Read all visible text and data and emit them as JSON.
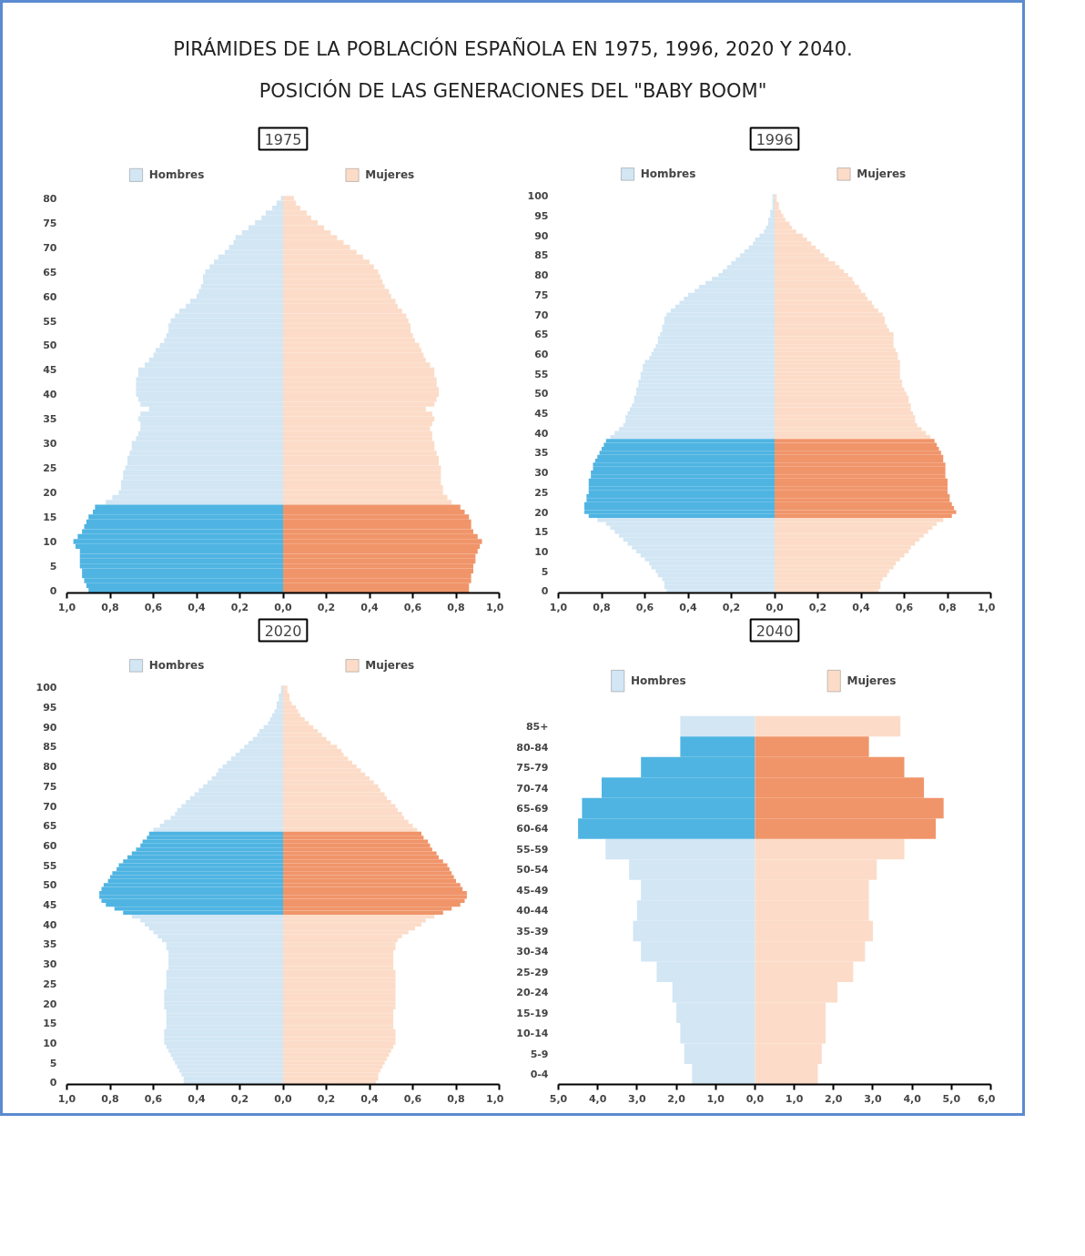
{
  "chart_data": [
    {
      "type": "other",
      "title": "PIRÁMIDES DE LA POBLACIÓN ESPAÑOLA EN 1975, 1996, 2020 Y 2040.",
      "subtitle": "POSICIÓN DE LAS GENERACIONES DEL \"BABY BOOM\""
    },
    {
      "type": "bar",
      "orientation": "horizontal",
      "stacked": true,
      "legend": "top",
      "title": "1975",
      "categories": [
        "80",
        null,
        null,
        null,
        null,
        "75",
        null,
        null,
        null,
        null,
        "70",
        null,
        null,
        null,
        null,
        "65",
        null,
        null,
        null,
        null,
        "60",
        null,
        null,
        null,
        null,
        "55",
        null,
        null,
        null,
        null,
        "50",
        null,
        null,
        null,
        null,
        "45",
        null,
        null,
        null,
        null,
        "40",
        null,
        null,
        null,
        null,
        "35",
        null,
        null,
        null,
        null,
        "30",
        null,
        null,
        null,
        null,
        "25",
        null,
        null,
        null,
        null,
        "20",
        null,
        null,
        null,
        null,
        "15",
        null,
        null,
        null,
        null,
        "10",
        null,
        null,
        null,
        null,
        "5",
        null,
        null,
        null,
        null,
        "0"
      ],
      "xlim": [
        -1.0,
        1.0
      ],
      "xticks": [
        {
          "value": -1.0,
          "label": "1,0"
        },
        {
          "value": -0.8,
          "label": "0,8"
        },
        {
          "value": -0.6,
          "label": "0,6"
        },
        {
          "value": -0.4,
          "label": "0,4"
        },
        {
          "value": -0.2,
          "label": "0,2"
        },
        {
          "value": 0,
          "label": "0,0"
        },
        {
          "value": 0.2,
          "label": "0,2"
        },
        {
          "value": 0.4,
          "label": "0,4"
        },
        {
          "value": 0.6,
          "label": "0,6"
        },
        {
          "value": 0.8,
          "label": "0,8"
        },
        {
          "value": 1.0,
          "label": "1,0"
        }
      ],
      "series": [
        {
          "name": "Hombres",
          "color": "#d2e6f4",
          "values": [
            -0.01,
            -0.03,
            -0.05,
            -0.08,
            -0.1,
            -0.13,
            -0.16,
            -0.19,
            -0.22,
            -0.23,
            -0.25,
            -0.27,
            -0.3,
            -0.32,
            -0.34,
            -0.36,
            -0.37,
            -0.37,
            -0.38,
            -0.39,
            -0.4,
            -0.43,
            -0.45,
            -0.48,
            -0.5,
            -0.52,
            -0.53,
            -0.53,
            -0.54,
            -0.55,
            -0.57,
            -0.59,
            -0.6,
            -0.62,
            -0.64,
            -0.67,
            -0.67,
            -0.68,
            -0.68,
            -0.68,
            -0.68,
            -0.67,
            -0.66,
            -0.62,
            -0.66,
            -0.67,
            -0.66,
            -0.66,
            -0.67,
            -0.68,
            -0.7,
            -0.7,
            -0.71,
            -0.72,
            -0.72,
            -0.73,
            -0.74,
            -0.74,
            -0.75,
            -0.75,
            -0.76,
            -0.79,
            -0.82,
            null,
            null,
            null,
            null,
            null,
            null,
            null,
            null,
            null,
            null,
            null,
            null,
            null,
            null,
            null,
            null,
            null,
            null
          ]
        },
        {
          "color": "#4fb4e2",
          "values": [
            null,
            null,
            null,
            null,
            null,
            null,
            null,
            null,
            null,
            null,
            null,
            null,
            null,
            null,
            null,
            null,
            null,
            null,
            null,
            null,
            null,
            null,
            null,
            null,
            null,
            null,
            null,
            null,
            null,
            null,
            null,
            null,
            null,
            null,
            null,
            null,
            null,
            null,
            null,
            null,
            null,
            null,
            null,
            null,
            null,
            null,
            null,
            null,
            null,
            null,
            null,
            null,
            null,
            null,
            null,
            null,
            null,
            null,
            null,
            null,
            null,
            null,
            null,
            -0.87,
            -0.88,
            -0.9,
            -0.91,
            -0.92,
            -0.93,
            -0.95,
            -0.97,
            -0.96,
            -0.94,
            -0.94,
            -0.94,
            -0.94,
            -0.93,
            -0.93,
            -0.92,
            -0.91,
            -0.9
          ]
        },
        {
          "name": "Mujeres",
          "color": "#fcdcc8",
          "values": [
            0.05,
            0.06,
            0.08,
            0.11,
            0.13,
            0.16,
            0.19,
            0.22,
            0.25,
            0.28,
            0.31,
            0.34,
            0.37,
            0.4,
            0.42,
            0.44,
            0.45,
            0.46,
            0.47,
            0.49,
            0.5,
            0.52,
            0.53,
            0.55,
            0.57,
            0.58,
            0.59,
            0.59,
            0.6,
            0.61,
            0.63,
            0.64,
            0.65,
            0.66,
            0.68,
            0.7,
            0.7,
            0.71,
            0.71,
            0.72,
            0.72,
            0.71,
            0.7,
            0.66,
            0.69,
            0.7,
            0.69,
            0.68,
            0.69,
            0.69,
            0.7,
            0.7,
            0.71,
            0.72,
            0.72,
            0.73,
            0.73,
            0.73,
            0.73,
            0.74,
            0.74,
            0.76,
            0.78,
            null,
            null,
            null,
            null,
            null,
            null,
            null,
            null,
            null,
            null,
            null,
            null,
            null,
            null,
            null,
            null,
            null,
            null
          ]
        },
        {
          "color": "#f0956a",
          "values": [
            null,
            null,
            null,
            null,
            null,
            null,
            null,
            null,
            null,
            null,
            null,
            null,
            null,
            null,
            null,
            null,
            null,
            null,
            null,
            null,
            null,
            null,
            null,
            null,
            null,
            null,
            null,
            null,
            null,
            null,
            null,
            null,
            null,
            null,
            null,
            null,
            null,
            null,
            null,
            null,
            null,
            null,
            null,
            null,
            null,
            null,
            null,
            null,
            null,
            null,
            null,
            null,
            null,
            null,
            null,
            null,
            null,
            null,
            null,
            null,
            null,
            null,
            null,
            0.82,
            0.84,
            0.86,
            0.87,
            0.87,
            0.88,
            0.9,
            0.92,
            0.91,
            0.9,
            0.89,
            0.89,
            0.88,
            0.88,
            0.87,
            0.87,
            0.86,
            0.86
          ]
        }
      ]
    },
    {
      "type": "bar",
      "orientation": "horizontal",
      "stacked": true,
      "legend": "top",
      "title": "1996",
      "categories": [
        "100",
        null,
        null,
        null,
        null,
        "95",
        null,
        null,
        null,
        null,
        "90",
        null,
        null,
        null,
        null,
        "85",
        null,
        null,
        null,
        null,
        "80",
        null,
        null,
        null,
        null,
        "75",
        null,
        null,
        null,
        null,
        "70",
        null,
        null,
        null,
        null,
        "65",
        null,
        null,
        null,
        null,
        "60",
        null,
        null,
        null,
        null,
        "55",
        null,
        null,
        null,
        null,
        "50",
        null,
        null,
        null,
        null,
        "45",
        null,
        null,
        null,
        null,
        "40",
        null,
        null,
        null,
        null,
        "35",
        null,
        null,
        null,
        null,
        "30",
        null,
        null,
        null,
        null,
        "25",
        null,
        null,
        null,
        null,
        "20",
        null,
        null,
        null,
        null,
        "15",
        null,
        null,
        null,
        null,
        "10",
        null,
        null,
        null,
        null,
        "5",
        null,
        null,
        null,
        null,
        "0"
      ],
      "xlim": [
        -1.0,
        1.0
      ],
      "xticks": [
        {
          "value": -1.0,
          "label": "1,0"
        },
        {
          "value": -0.8,
          "label": "0,8"
        },
        {
          "value": -0.6,
          "label": "0,6"
        },
        {
          "value": -0.4,
          "label": "0,4"
        },
        {
          "value": -0.2,
          "label": "0,2"
        },
        {
          "value": 0,
          "label": "0,0"
        },
        {
          "value": 0.2,
          "label": "0,2"
        },
        {
          "value": 0.4,
          "label": "0,4"
        },
        {
          "value": 0.6,
          "label": "0,6"
        },
        {
          "value": 0.8,
          "label": "0,8"
        },
        {
          "value": 1.0,
          "label": "1,0"
        }
      ],
      "series": [
        {
          "name": "Hombres",
          "color": "#d2e6f4",
          "values": [
            -0.01,
            -0.01,
            -0.01,
            -0.01,
            -0.02,
            -0.02,
            -0.03,
            -0.03,
            -0.04,
            -0.05,
            -0.07,
            -0.09,
            -0.1,
            -0.12,
            -0.14,
            -0.16,
            -0.18,
            -0.2,
            -0.22,
            -0.24,
            -0.26,
            -0.29,
            -0.32,
            -0.35,
            -0.37,
            -0.4,
            -0.42,
            -0.44,
            -0.46,
            -0.48,
            -0.5,
            -0.51,
            -0.51,
            -0.52,
            -0.52,
            -0.53,
            -0.54,
            -0.54,
            -0.55,
            -0.56,
            -0.57,
            -0.58,
            -0.6,
            -0.61,
            -0.61,
            -0.62,
            -0.62,
            -0.63,
            -0.63,
            -0.64,
            -0.64,
            -0.65,
            -0.65,
            -0.66,
            -0.67,
            -0.68,
            -0.69,
            -0.69,
            -0.7,
            -0.72,
            -0.74,
            -0.76,
            null,
            null,
            null,
            null,
            null,
            null,
            null,
            null,
            null,
            null,
            null,
            null,
            null,
            null,
            null,
            null,
            null,
            null,
            null,
            null,
            -0.82,
            -0.78,
            -0.76,
            -0.74,
            -0.72,
            -0.7,
            -0.68,
            -0.66,
            -0.64,
            -0.62,
            -0.6,
            -0.58,
            -0.57,
            -0.55,
            -0.54,
            -0.52,
            -0.51,
            -0.51,
            -0.5
          ]
        },
        {
          "color": "#4fb4e2",
          "values": [
            null,
            null,
            null,
            null,
            null,
            null,
            null,
            null,
            null,
            null,
            null,
            null,
            null,
            null,
            null,
            null,
            null,
            null,
            null,
            null,
            null,
            null,
            null,
            null,
            null,
            null,
            null,
            null,
            null,
            null,
            null,
            null,
            null,
            null,
            null,
            null,
            null,
            null,
            null,
            null,
            null,
            null,
            null,
            null,
            null,
            null,
            null,
            null,
            null,
            null,
            null,
            null,
            null,
            null,
            null,
            null,
            null,
            null,
            null,
            null,
            null,
            null,
            -0.78,
            -0.79,
            -0.8,
            -0.81,
            -0.82,
            -0.83,
            -0.84,
            -0.84,
            -0.85,
            -0.85,
            -0.86,
            -0.86,
            -0.86,
            -0.86,
            -0.87,
            -0.87,
            -0.88,
            -0.88,
            -0.88,
            -0.86,
            null,
            null,
            null,
            null,
            null,
            null,
            null,
            null,
            null,
            null,
            null,
            null,
            null,
            null,
            null,
            null,
            null,
            null,
            null
          ]
        },
        {
          "name": "Mujeres",
          "color": "#fcdcc8",
          "values": [
            0.01,
            0.01,
            0.02,
            0.02,
            0.03,
            0.04,
            0.05,
            0.07,
            0.08,
            0.1,
            0.13,
            0.15,
            0.17,
            0.19,
            0.21,
            0.23,
            0.25,
            0.28,
            0.3,
            0.32,
            0.34,
            0.36,
            0.37,
            0.39,
            0.4,
            0.42,
            0.43,
            0.45,
            0.46,
            0.48,
            0.5,
            0.51,
            0.51,
            0.52,
            0.53,
            0.55,
            0.55,
            0.55,
            0.55,
            0.56,
            0.57,
            0.57,
            0.58,
            0.58,
            0.58,
            0.58,
            0.58,
            0.59,
            0.59,
            0.6,
            0.61,
            0.62,
            0.62,
            0.63,
            0.63,
            0.64,
            0.65,
            0.65,
            0.66,
            0.68,
            0.7,
            0.72,
            null,
            null,
            null,
            null,
            null,
            null,
            null,
            null,
            null,
            null,
            null,
            null,
            null,
            null,
            null,
            null,
            null,
            null,
            null,
            null,
            0.78,
            0.75,
            0.73,
            0.71,
            0.69,
            0.67,
            0.65,
            0.63,
            0.62,
            0.6,
            0.58,
            0.56,
            0.55,
            0.53,
            0.52,
            0.5,
            0.49,
            0.49,
            0.48
          ]
        },
        {
          "color": "#f0956a",
          "values": [
            null,
            null,
            null,
            null,
            null,
            null,
            null,
            null,
            null,
            null,
            null,
            null,
            null,
            null,
            null,
            null,
            null,
            null,
            null,
            null,
            null,
            null,
            null,
            null,
            null,
            null,
            null,
            null,
            null,
            null,
            null,
            null,
            null,
            null,
            null,
            null,
            null,
            null,
            null,
            null,
            null,
            null,
            null,
            null,
            null,
            null,
            null,
            null,
            null,
            null,
            null,
            null,
            null,
            null,
            null,
            null,
            null,
            null,
            null,
            null,
            null,
            null,
            0.74,
            0.75,
            0.76,
            0.77,
            0.78,
            0.78,
            0.79,
            0.79,
            0.79,
            0.79,
            0.8,
            0.8,
            0.8,
            0.8,
            0.81,
            0.81,
            0.82,
            0.83,
            0.84,
            0.82,
            null,
            null,
            null,
            null,
            null,
            null,
            null,
            null,
            null,
            null,
            null,
            null,
            null,
            null,
            null,
            null,
            null,
            null,
            null
          ]
        }
      ]
    },
    {
      "type": "bar",
      "orientation": "horizontal",
      "stacked": true,
      "legend": "top",
      "title": "2020",
      "categories": [
        "100",
        null,
        null,
        null,
        null,
        "95",
        null,
        null,
        null,
        null,
        "90",
        null,
        null,
        null,
        null,
        "85",
        null,
        null,
        null,
        null,
        "80",
        null,
        null,
        null,
        null,
        "75",
        null,
        null,
        null,
        null,
        "70",
        null,
        null,
        null,
        null,
        "65",
        null,
        null,
        null,
        null,
        "60",
        null,
        null,
        null,
        null,
        "55",
        null,
        null,
        null,
        null,
        "50",
        null,
        null,
        null,
        null,
        "45",
        null,
        null,
        null,
        null,
        "40",
        null,
        null,
        null,
        null,
        "35",
        null,
        null,
        null,
        null,
        "30",
        null,
        null,
        null,
        null,
        "25",
        null,
        null,
        null,
        null,
        "20",
        null,
        null,
        null,
        null,
        "15",
        null,
        null,
        null,
        null,
        "10",
        null,
        null,
        null,
        null,
        "5",
        null,
        null,
        null,
        null,
        "0"
      ],
      "xlim": [
        -1.0,
        1.0
      ],
      "xticks": [
        {
          "value": -1.0,
          "label": "1,0"
        },
        {
          "value": -0.8,
          "label": "0,8"
        },
        {
          "value": -0.6,
          "label": "0,6"
        },
        {
          "value": -0.4,
          "label": "0,4"
        },
        {
          "value": -0.2,
          "label": "0,2"
        },
        {
          "value": 0,
          "label": "0,0"
        },
        {
          "value": 0.2,
          "label": "0,2"
        },
        {
          "value": 0.4,
          "label": "0,4"
        },
        {
          "value": 0.6,
          "label": "0,6"
        },
        {
          "value": 0.8,
          "label": "0,8"
        },
        {
          "value": 1.0,
          "label": "1,0"
        }
      ],
      "series": [
        {
          "name": "Hombres",
          "color": "#d2e6f4",
          "values": [
            -0.01,
            -0.01,
            -0.02,
            -0.02,
            -0.03,
            -0.03,
            -0.04,
            -0.05,
            -0.06,
            -0.07,
            -0.09,
            -0.11,
            -0.12,
            -0.14,
            -0.16,
            -0.18,
            -0.2,
            -0.22,
            -0.24,
            -0.26,
            -0.28,
            -0.3,
            -0.31,
            -0.33,
            -0.35,
            -0.37,
            -0.39,
            -0.41,
            -0.43,
            -0.45,
            -0.47,
            -0.49,
            -0.5,
            -0.52,
            -0.55,
            -0.57,
            -0.6,
            null,
            null,
            null,
            null,
            null,
            null,
            null,
            null,
            null,
            null,
            null,
            null,
            null,
            null,
            null,
            null,
            null,
            null,
            null,
            null,
            null,
            -0.7,
            -0.66,
            -0.64,
            -0.62,
            -0.6,
            -0.58,
            -0.56,
            -0.54,
            -0.54,
            -0.53,
            -0.53,
            -0.53,
            -0.53,
            -0.53,
            -0.54,
            -0.54,
            -0.54,
            -0.54,
            -0.54,
            -0.55,
            -0.55,
            -0.55,
            -0.55,
            -0.55,
            -0.54,
            -0.54,
            -0.54,
            -0.54,
            -0.54,
            -0.55,
            -0.55,
            -0.55,
            -0.55,
            -0.54,
            -0.53,
            -0.52,
            -0.51,
            -0.5,
            -0.49,
            -0.48,
            -0.47,
            -0.46,
            -0.46
          ]
        },
        {
          "color": "#4fb4e2",
          "values": [
            null,
            null,
            null,
            null,
            null,
            null,
            null,
            null,
            null,
            null,
            null,
            null,
            null,
            null,
            null,
            null,
            null,
            null,
            null,
            null,
            null,
            null,
            null,
            null,
            null,
            null,
            null,
            null,
            null,
            null,
            null,
            null,
            null,
            null,
            null,
            null,
            null,
            -0.62,
            -0.63,
            -0.65,
            -0.66,
            -0.68,
            -0.7,
            -0.72,
            -0.74,
            -0.76,
            -0.77,
            -0.79,
            -0.8,
            -0.81,
            -0.83,
            -0.84,
            -0.85,
            -0.85,
            -0.84,
            -0.82,
            -0.78,
            -0.74,
            null,
            null,
            null,
            null,
            null,
            null,
            null,
            null,
            null,
            null,
            null,
            null,
            null,
            null,
            null,
            null,
            null,
            null,
            null,
            null,
            null,
            null,
            null,
            null,
            null,
            null,
            null,
            null,
            null,
            null,
            null,
            null,
            null,
            null,
            null,
            null,
            null,
            null,
            null,
            null,
            null,
            null,
            null
          ]
        },
        {
          "name": "Mujeres",
          "color": "#fcdcc8",
          "values": [
            0.02,
            0.02,
            0.03,
            0.03,
            0.04,
            0.06,
            0.07,
            0.08,
            0.1,
            0.12,
            0.14,
            0.16,
            0.18,
            0.2,
            0.22,
            0.25,
            0.27,
            0.28,
            0.3,
            0.32,
            0.34,
            0.36,
            0.38,
            0.4,
            0.42,
            0.44,
            0.45,
            0.47,
            0.48,
            0.5,
            0.52,
            0.53,
            0.55,
            0.56,
            0.58,
            0.6,
            0.62,
            null,
            null,
            null,
            null,
            null,
            null,
            null,
            null,
            null,
            null,
            null,
            null,
            null,
            null,
            null,
            null,
            null,
            null,
            null,
            null,
            null,
            0.7,
            0.66,
            0.64,
            0.61,
            0.58,
            0.55,
            0.53,
            0.52,
            0.52,
            0.51,
            0.51,
            0.51,
            0.51,
            0.51,
            0.52,
            0.52,
            0.52,
            0.52,
            0.52,
            0.52,
            0.52,
            0.52,
            0.52,
            0.52,
            0.51,
            0.51,
            0.51,
            0.51,
            0.51,
            0.52,
            0.52,
            0.52,
            0.52,
            0.51,
            0.5,
            0.49,
            0.48,
            0.47,
            0.46,
            0.45,
            0.44,
            0.44,
            0.43
          ]
        },
        {
          "color": "#f0956a",
          "values": [
            null,
            null,
            null,
            null,
            null,
            null,
            null,
            null,
            null,
            null,
            null,
            null,
            null,
            null,
            null,
            null,
            null,
            null,
            null,
            null,
            null,
            null,
            null,
            null,
            null,
            null,
            null,
            null,
            null,
            null,
            null,
            null,
            null,
            null,
            null,
            null,
            null,
            0.64,
            0.65,
            0.67,
            0.68,
            0.69,
            0.71,
            0.72,
            0.74,
            0.76,
            0.77,
            0.78,
            0.79,
            0.8,
            0.82,
            0.83,
            0.85,
            0.85,
            0.84,
            0.82,
            0.78,
            0.74,
            null,
            null,
            null,
            null,
            null,
            null,
            null,
            null,
            null,
            null,
            null,
            null,
            null,
            null,
            null,
            null,
            null,
            null,
            null,
            null,
            null,
            null,
            null,
            null,
            null,
            null,
            null,
            null,
            null,
            null,
            null,
            null,
            null,
            null,
            null,
            null,
            null,
            null,
            null,
            null,
            null,
            null,
            null
          ]
        }
      ]
    },
    {
      "type": "bar",
      "orientation": "horizontal",
      "stacked": true,
      "legend": "top",
      "title": "2040",
      "categories": [
        "85+",
        "80-84",
        "75-79",
        "70-74",
        "65-69",
        "60-64",
        "55-59",
        "50-54",
        "45-49",
        "40-44",
        "35-39",
        "30-34",
        "25-29",
        "20-24",
        "15-19",
        "10-14",
        "5-9",
        "0-4"
      ],
      "xlim": [
        -5.0,
        6.0
      ],
      "xticks": [
        {
          "value": -5.0,
          "label": "5,0"
        },
        {
          "value": -4.0,
          "label": "4,0"
        },
        {
          "value": -3.0,
          "label": "3,0"
        },
        {
          "value": -2.0,
          "label": "2,0"
        },
        {
          "value": -1.0,
          "label": "1,0"
        },
        {
          "value": 0,
          "label": "0,0"
        },
        {
          "value": 1.0,
          "label": "1,0"
        },
        {
          "value": 2.0,
          "label": "2,0"
        },
        {
          "value": 3.0,
          "label": "3,0"
        },
        {
          "value": 4.0,
          "label": "4,0"
        },
        {
          "value": 5.0,
          "label": "5,0"
        },
        {
          "value": 6.0,
          "label": "6,0"
        }
      ],
      "series": [
        {
          "name": "Hombres",
          "color": "#d2e6f4",
          "values": [
            -1.9,
            null,
            null,
            null,
            null,
            null,
            -3.8,
            -3.2,
            -2.9,
            -3.0,
            -3.1,
            -2.9,
            -2.5,
            -2.1,
            -2.0,
            -1.9,
            -1.8,
            -1.6
          ]
        },
        {
          "color": "#4fb4e2",
          "values": [
            null,
            -1.9,
            -2.9,
            -3.9,
            -4.4,
            -4.5,
            null,
            null,
            null,
            null,
            null,
            null,
            null,
            null,
            null,
            null,
            null,
            null
          ]
        },
        {
          "name": "Mujeres",
          "color": "#fcdcc8",
          "values": [
            3.7,
            null,
            null,
            null,
            null,
            null,
            3.8,
            3.1,
            2.9,
            2.9,
            3.0,
            2.8,
            2.5,
            2.1,
            1.8,
            1.8,
            1.7,
            1.6
          ]
        },
        {
          "color": "#f0956a",
          "values": [
            null,
            2.9,
            3.8,
            4.3,
            4.8,
            4.6,
            null,
            null,
            null,
            null,
            null,
            null,
            null,
            null,
            null,
            null,
            null,
            null
          ]
        }
      ]
    }
  ]
}
